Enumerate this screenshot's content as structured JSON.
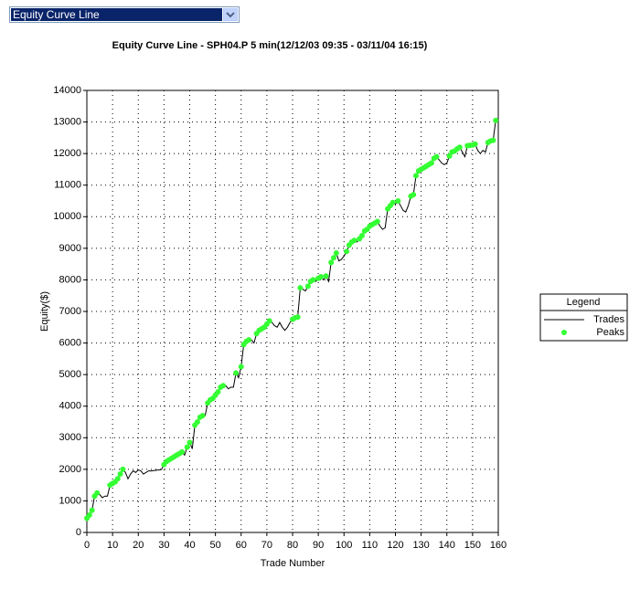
{
  "dropdown": {
    "selected": "Equity Curve Line"
  },
  "chart_data": {
    "type": "line",
    "title": "Equity Curve Line - SPH04.P 5 min(12/12/03 09:35 - 03/11/04 16:15)",
    "xlabel": "Trade Number",
    "ylabel": "Equity($)",
    "legend_title": "Legend",
    "legend": "right",
    "grid": true,
    "xlim": [
      0,
      160
    ],
    "ylim": [
      0,
      14000
    ],
    "xticks": [
      0,
      10,
      20,
      30,
      40,
      50,
      60,
      70,
      80,
      90,
      100,
      110,
      120,
      130,
      140,
      150,
      160
    ],
    "yticks": [
      0,
      1000,
      2000,
      3000,
      4000,
      5000,
      6000,
      7000,
      8000,
      9000,
      10000,
      11000,
      12000,
      13000,
      14000
    ],
    "x": [
      0,
      1,
      2,
      3,
      4,
      5,
      6,
      7,
      8,
      9,
      10,
      11,
      12,
      13,
      14,
      15,
      16,
      17,
      18,
      19,
      20,
      21,
      22,
      23,
      24,
      25,
      26,
      27,
      28,
      29,
      30,
      31,
      32,
      33,
      34,
      35,
      36,
      37,
      38,
      39,
      40,
      41,
      42,
      43,
      44,
      45,
      46,
      47,
      48,
      49,
      50,
      51,
      52,
      53,
      54,
      55,
      56,
      57,
      58,
      59,
      60,
      61,
      62,
      63,
      64,
      65,
      66,
      67,
      68,
      69,
      70,
      71,
      72,
      73,
      74,
      75,
      76,
      77,
      78,
      79,
      80,
      81,
      82,
      83,
      84,
      85,
      86,
      87,
      88,
      89,
      90,
      91,
      92,
      93,
      94,
      95,
      96,
      97,
      98,
      99,
      100,
      101,
      102,
      103,
      104,
      105,
      106,
      107,
      108,
      109,
      110,
      111,
      112,
      113,
      114,
      115,
      116,
      117,
      118,
      119,
      120,
      121,
      122,
      123,
      124,
      125,
      126,
      127,
      128,
      129,
      130,
      131,
      132,
      133,
      134,
      135,
      136,
      137,
      138,
      139,
      140,
      141,
      142,
      143,
      144,
      145,
      146,
      147,
      148,
      149,
      150,
      151,
      152,
      153,
      154,
      155,
      156,
      157,
      158,
      159
    ],
    "series": [
      {
        "name": "Trades",
        "color": "#000000",
        "values": [
          450,
          550,
          700,
          1150,
          1250,
          1200,
          1100,
          1150,
          1150,
          1500,
          1550,
          1600,
          1700,
          1850,
          2000,
          1900,
          1700,
          1850,
          1950,
          1900,
          1980,
          1950,
          1850,
          1900,
          1950,
          1950,
          1960,
          1970,
          1980,
          1990,
          2150,
          2250,
          2300,
          2350,
          2400,
          2450,
          2500,
          2550,
          2450,
          2700,
          2850,
          2650,
          3400,
          3500,
          3650,
          3700,
          3700,
          4100,
          4200,
          4250,
          4350,
          4450,
          4600,
          4650,
          4650,
          4550,
          4600,
          4600,
          5050,
          4900,
          5250,
          5950,
          6050,
          6100,
          6100,
          6000,
          6300,
          6400,
          6450,
          6500,
          6600,
          6700,
          6650,
          6550,
          6500,
          6650,
          6500,
          6400,
          6500,
          6650,
          6750,
          6800,
          6820,
          7750,
          7700,
          7650,
          7800,
          7950,
          8000,
          7950,
          8050,
          8100,
          8000,
          8120,
          7950,
          8550,
          8700,
          8850,
          8600,
          8650,
          8750,
          8900,
          9100,
          9200,
          9250,
          9200,
          9300,
          9400,
          9550,
          9600,
          9700,
          9750,
          9800,
          9850,
          9700,
          9600,
          9650,
          10250,
          10350,
          10450,
          10400,
          10500,
          10350,
          10200,
          10150,
          10350,
          10650,
          10700,
          11300,
          11450,
          11500,
          11550,
          11600,
          11650,
          11700,
          11850,
          11900,
          11800,
          11700,
          11650,
          11700,
          11920,
          12050,
          12080,
          12150,
          12200,
          12050,
          11900,
          12250,
          12260,
          12270,
          12300,
          12100,
          12000,
          12100,
          12050,
          12350,
          12400,
          12420,
          13050
        ]
      },
      {
        "name": "Peaks",
        "type": "scatter",
        "color": "#33ff33",
        "x": [
          0,
          1,
          2,
          3,
          4,
          9,
          10,
          11,
          12,
          13,
          14,
          30,
          31,
          32,
          33,
          34,
          35,
          36,
          37,
          39,
          40,
          42,
          43,
          44,
          45,
          47,
          48,
          49,
          50,
          51,
          52,
          53,
          58,
          60,
          61,
          62,
          63,
          66,
          67,
          68,
          69,
          70,
          71,
          80,
          81,
          82,
          83,
          86,
          87,
          88,
          90,
          91,
          93,
          95,
          96,
          97,
          101,
          102,
          103,
          104,
          106,
          107,
          108,
          109,
          110,
          111,
          112,
          113,
          117,
          118,
          119,
          121,
          126,
          127,
          128,
          129,
          130,
          131,
          132,
          133,
          134,
          135,
          136,
          141,
          142,
          143,
          144,
          145,
          148,
          149,
          150,
          151,
          156,
          157,
          158,
          159
        ],
        "values": [
          450,
          550,
          700,
          1150,
          1250,
          1500,
          1550,
          1600,
          1700,
          1850,
          2000,
          2150,
          2250,
          2300,
          2350,
          2400,
          2450,
          2500,
          2550,
          2700,
          2850,
          3400,
          3500,
          3650,
          3700,
          4100,
          4200,
          4250,
          4350,
          4450,
          4600,
          4650,
          5050,
          5250,
          5950,
          6050,
          6100,
          6300,
          6400,
          6450,
          6500,
          6600,
          6700,
          6750,
          6800,
          6820,
          7750,
          7800,
          7950,
          8000,
          8050,
          8100,
          8120,
          8550,
          8700,
          8850,
          8900,
          9100,
          9200,
          9250,
          9300,
          9400,
          9550,
          9600,
          9700,
          9750,
          9800,
          9850,
          10250,
          10350,
          10450,
          10500,
          10650,
          10700,
          11300,
          11450,
          11500,
          11550,
          11600,
          11650,
          11700,
          11850,
          11900,
          11920,
          12050,
          12080,
          12150,
          12200,
          12250,
          12260,
          12270,
          12300,
          12350,
          12400,
          12420,
          13050
        ]
      }
    ]
  }
}
